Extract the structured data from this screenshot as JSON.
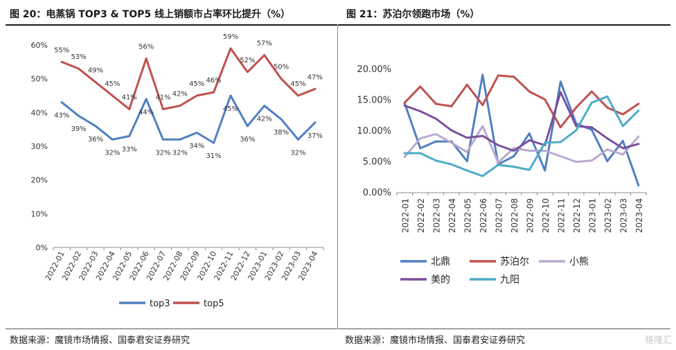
{
  "left": {
    "title": "图 20：电蒸锅 TOP3 & TOP5 线上销额市占率环比提升（%）",
    "source": "数据来源：魔镜市场情报、国泰君安证券研究"
  },
  "right": {
    "title": "图 21：苏泊尔领跑市场（%）",
    "source": "数据来源：魔镜市场情报、国泰君安证券研究"
  },
  "watermark": "格隆汇",
  "chart_data": [
    {
      "type": "line",
      "title": "图 20：电蒸锅 TOP3 & TOP5 线上销额市占率环比提升（%）",
      "categories": [
        "2022-01",
        "2022-02",
        "2022-03",
        "2022-04",
        "2022-05",
        "2022-06",
        "2022-07",
        "2022-08",
        "2022-09",
        "2022-10",
        "2022-11",
        "2022-12",
        "2023-01",
        "2023-02",
        "2023-03",
        "2023-04"
      ],
      "ylim": [
        0,
        60
      ],
      "yticks": [
        0,
        10,
        20,
        30,
        40,
        50,
        60
      ],
      "ytick_labels": [
        "0%",
        "10%",
        "20%",
        "30%",
        "40%",
        "50%",
        "60%"
      ],
      "grid": false,
      "legend_position": "bottom",
      "series": [
        {
          "name": "top3",
          "color": "#4f7fc0",
          "values": [
            43,
            39,
            36,
            32,
            33,
            44,
            32,
            32,
            34,
            31,
            45,
            36,
            42,
            38,
            32,
            37
          ],
          "labels": [
            "43%",
            "39%",
            "36%",
            "32%",
            "33%",
            "44%",
            "32%",
            "32%",
            "34%",
            "31%",
            "45%",
            "36%",
            "42%",
            "38%",
            "32%",
            "37%"
          ]
        },
        {
          "name": "top5",
          "color": "#c0504d",
          "values": [
            55,
            53,
            49,
            45,
            41,
            56,
            41,
            42,
            45,
            46,
            59,
            52,
            57,
            50,
            45,
            47
          ],
          "labels": [
            "55%",
            "53%",
            "49%",
            "45%",
            "41%",
            "56%",
            "41%",
            "42%",
            "45%",
            "46%",
            "59%",
            "52%",
            "57%",
            "50%",
            "45%",
            "47%"
          ]
        }
      ]
    },
    {
      "type": "line",
      "title": "图 21：苏泊尔领跑市场（%）",
      "categories": [
        "2022-01",
        "2022-02",
        "2022-03",
        "2022-04",
        "2022-05",
        "2022-06",
        "2022-07",
        "2022-08",
        "2022-09",
        "2022-10",
        "2022-11",
        "2022-12",
        "2023-01",
        "2023-02",
        "2023-03",
        "2023-04"
      ],
      "ylim": [
        0,
        20
      ],
      "yticks": [
        0,
        5,
        10,
        15,
        20
      ],
      "ytick_labels": [
        "0.00%",
        "5.00%",
        "10.00%",
        "15.00%",
        "20.00%"
      ],
      "grid": false,
      "legend_position": "bottom",
      "series": [
        {
          "name": "北鼎",
          "color": "#4f7fc0",
          "values": [
            14.5,
            7.2,
            8.3,
            8.3,
            5.1,
            19.1,
            4.6,
            5.9,
            9.6,
            3.6,
            18.0,
            11.2,
            10.2,
            5.1,
            8.4,
            1.2
          ]
        },
        {
          "name": "苏泊尔",
          "color": "#c0504d",
          "values": [
            14.6,
            17.2,
            14.4,
            14.0,
            17.5,
            14.2,
            19.0,
            18.8,
            16.4,
            15.1,
            10.6,
            13.8,
            16.4,
            13.8,
            12.7,
            14.4
          ]
        },
        {
          "name": "小熊",
          "color": "#b8a9cf",
          "values": [
            5.8,
            8.8,
            9.5,
            8.1,
            6.6,
            10.8,
            4.9,
            7.2,
            6.8,
            6.8,
            5.9,
            5.0,
            5.2,
            7.0,
            6.2,
            9.1
          ]
        },
        {
          "name": "美的",
          "color": "#7a4f9c",
          "values": [
            14.1,
            13.2,
            12.0,
            10.1,
            8.9,
            9.2,
            7.7,
            6.8,
            8.5,
            7.7,
            16.3,
            10.8,
            10.6,
            8.8,
            7.2,
            7.9
          ]
        },
        {
          "name": "九阳",
          "color": "#4bacc6",
          "values": [
            6.4,
            6.4,
            5.2,
            4.6,
            3.6,
            2.7,
            4.5,
            4.2,
            3.7,
            8.1,
            8.2,
            10.1,
            14.6,
            15.6,
            10.8,
            13.3
          ]
        }
      ]
    }
  ]
}
